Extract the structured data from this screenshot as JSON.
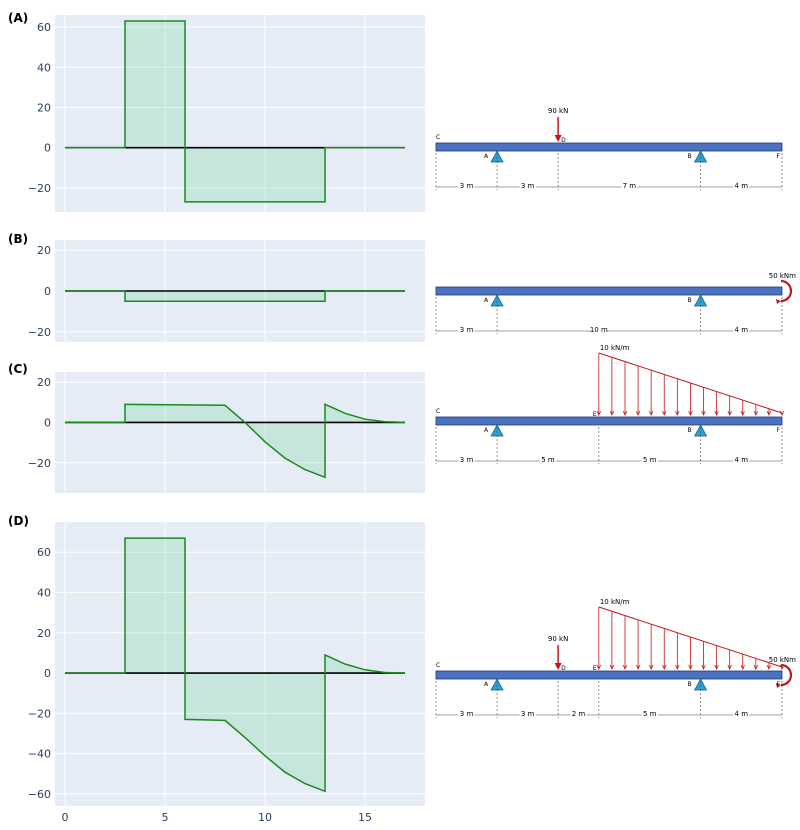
{
  "chart_data": [
    {
      "type": "area",
      "label": "(A)",
      "ylim": [
        -32,
        66
      ],
      "xlim": [
        -0.5,
        18
      ],
      "yticks": [
        -20,
        0,
        20,
        40,
        60
      ],
      "xticks": [
        0,
        5,
        10,
        15
      ],
      "show_xtick_labels": false,
      "series": [
        {
          "x": [
            0,
            3,
            3,
            6,
            6,
            13,
            13,
            17
          ],
          "y": [
            0,
            0,
            63,
            63,
            -27,
            -27,
            0,
            0
          ]
        }
      ],
      "beam": {
        "points": [
          "C",
          "A",
          "D",
          "B",
          "F"
        ],
        "spans": [
          "3 m",
          "3 m",
          "7 m",
          "4 m"
        ],
        "span_lengths": [
          3,
          3,
          7,
          4
        ],
        "point_load": {
          "at": 6,
          "label": "90 kN"
        },
        "distributed_load": null,
        "moment": null
      }
    },
    {
      "type": "area",
      "label": "(B)",
      "ylim": [
        -25,
        25
      ],
      "xlim": [
        -0.5,
        18
      ],
      "yticks": [
        -20,
        0,
        20
      ],
      "xticks": [
        0,
        5,
        10,
        15
      ],
      "show_xtick_labels": false,
      "series": [
        {
          "x": [
            0,
            3,
            3,
            13,
            13,
            17
          ],
          "y": [
            0,
            0,
            -5,
            -5,
            0,
            0
          ]
        }
      ],
      "beam": {
        "points": [
          "",
          "A",
          "B",
          ""
        ],
        "spans": [
          "3 m",
          "10 m",
          "4 m"
        ],
        "span_lengths": [
          3,
          10,
          4
        ],
        "point_load": null,
        "distributed_load": null,
        "moment": {
          "at": 17,
          "label": "50 kNm"
        }
      }
    },
    {
      "type": "area",
      "label": "(C)",
      "ylim": [
        -35,
        25
      ],
      "xlim": [
        -0.5,
        18
      ],
      "yticks": [
        -20,
        0,
        20
      ],
      "xticks": [
        0,
        5,
        10,
        15
      ],
      "show_xtick_labels": false,
      "series": [
        {
          "x": [
            0,
            3,
            3,
            8,
            9,
            10,
            11,
            12,
            13,
            13,
            14,
            15,
            16,
            17
          ],
          "y": [
            0,
            0,
            9,
            8.5,
            0,
            -9.6,
            -17.7,
            -23.4,
            -27.2,
            9,
            4.5,
            1.6,
            0.3,
            0
          ]
        }
      ],
      "beam": {
        "points": [
          "C",
          "A",
          "E",
          "B",
          "F"
        ],
        "spans": [
          "3 m",
          "5 m",
          "5 m",
          "4 m"
        ],
        "span_lengths": [
          3,
          5,
          5,
          4
        ],
        "point_load": null,
        "distributed_load": {
          "start": 8,
          "end": 17,
          "label": "10 kN/m"
        },
        "moment": null
      }
    },
    {
      "type": "area",
      "label": "(D)",
      "ylim": [
        -66,
        75
      ],
      "xlim": [
        -0.5,
        18
      ],
      "yticks": [
        -60,
        -40,
        -20,
        0,
        20,
        40,
        60
      ],
      "xticks": [
        0,
        5,
        10,
        15
      ],
      "show_xtick_labels": true,
      "series": [
        {
          "x": [
            0,
            3,
            3,
            6,
            6,
            8,
            9,
            10,
            11,
            12,
            13,
            13,
            14,
            15,
            16,
            17
          ],
          "y": [
            0,
            0,
            67,
            67,
            -23,
            -23.5,
            -32,
            -41.1,
            -49.2,
            -54.9,
            -58.7,
            9,
            4.5,
            1.6,
            0.3,
            0
          ]
        }
      ],
      "beam": {
        "points": [
          "C",
          "A",
          "D",
          "E",
          "B",
          "F"
        ],
        "spans": [
          "3 m",
          "3 m",
          "2 m",
          "5 m",
          "4 m"
        ],
        "span_lengths": [
          3,
          3,
          2,
          5,
          4
        ],
        "point_load": {
          "at": 6,
          "label": "90 kN"
        },
        "distributed_load": {
          "start": 8,
          "end": 17,
          "label": "10 kN/m"
        },
        "moment": {
          "at": 17,
          "label": "50 kNm"
        }
      }
    }
  ]
}
